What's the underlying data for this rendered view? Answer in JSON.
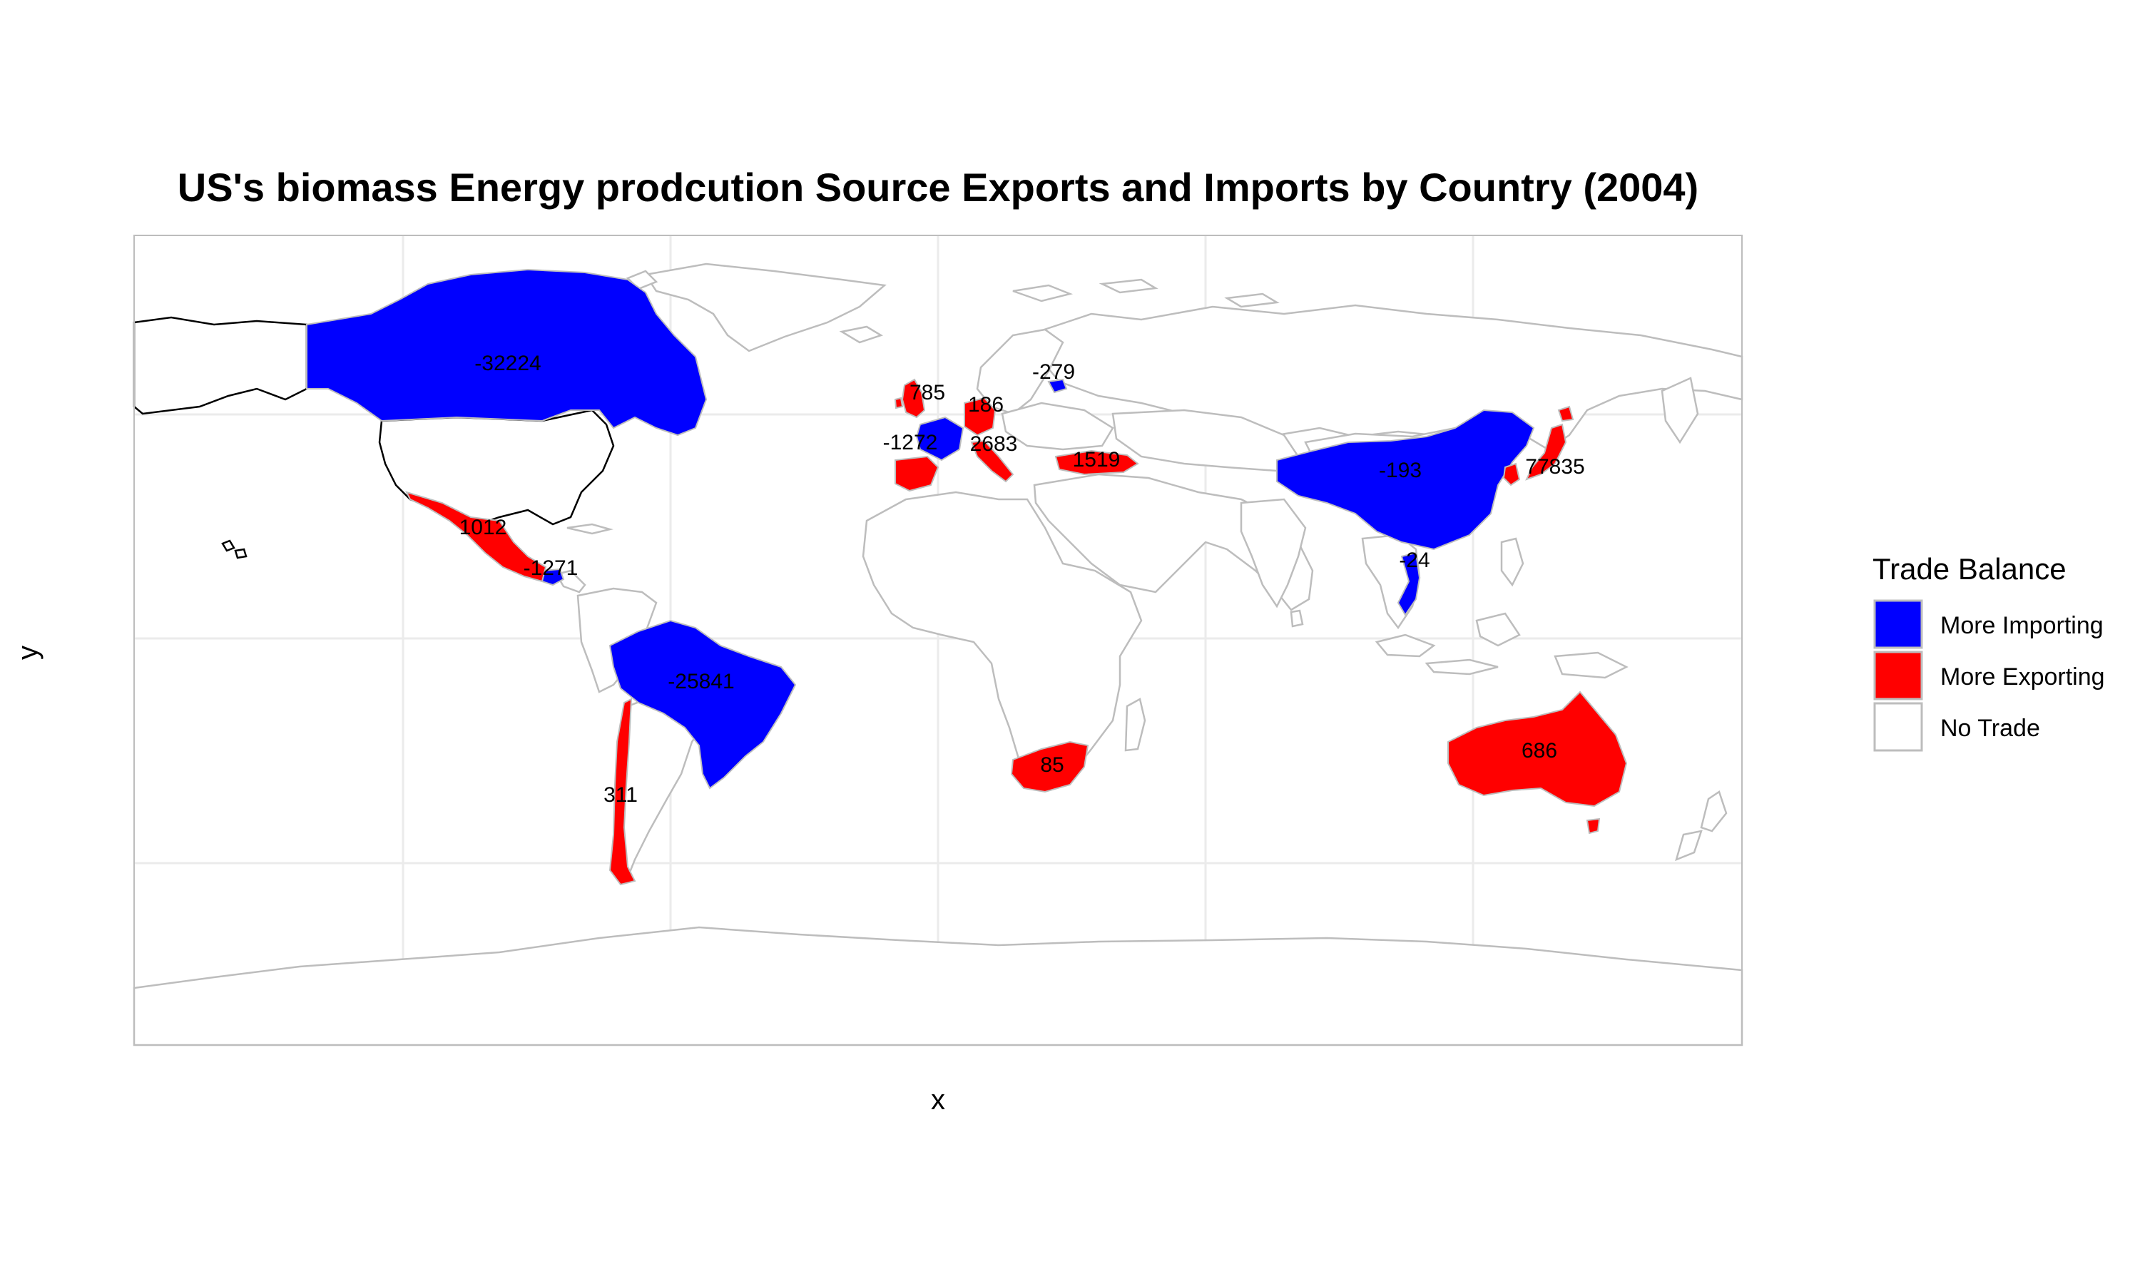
{
  "title": "US's biomass Energy prodcution Source Exports and Imports by Country (2004)",
  "x_label": "x",
  "y_label": "y",
  "legend": {
    "title": "Trade Balance",
    "items": [
      {
        "label": "More Importing",
        "color": "#0000ff"
      },
      {
        "label": "More Exporting",
        "color": "#ff0000"
      },
      {
        "label": "No Trade",
        "color": "#ffffff"
      }
    ]
  },
  "chart_data": {
    "type": "choropleth",
    "title": "US's biomass Energy prodcution Source Exports and Imports by Country (2004)",
    "xlabel": "x",
    "ylabel": "y",
    "legend_placement": "right",
    "grid": true,
    "regions": [
      {
        "country": "Canada",
        "value": -32224,
        "label": "-32224",
        "category": "More Importing"
      },
      {
        "country": "Mexico",
        "value": 1012,
        "label": "1012",
        "category": "More Exporting"
      },
      {
        "country": "Guatemala",
        "value": -1271,
        "label": "-1271",
        "category": "More Importing"
      },
      {
        "country": "Brazil",
        "value": -25841,
        "label": "-25841",
        "category": "More Importing"
      },
      {
        "country": "Chile",
        "value": 311,
        "label": "311",
        "category": "More Exporting"
      },
      {
        "country": "United Kingdom",
        "value": 785,
        "label": "785",
        "category": "More Exporting"
      },
      {
        "country": "Germany",
        "value": 186,
        "label": "186",
        "category": "More Exporting"
      },
      {
        "country": "Latvia",
        "value": -279,
        "label": "-279",
        "category": "More Importing"
      },
      {
        "country": "France",
        "value": -1272,
        "label": "-1272",
        "category": "More Importing"
      },
      {
        "country": "Spain",
        "value": null,
        "label": "",
        "category": "More Exporting"
      },
      {
        "country": "Italy",
        "value": 2683,
        "label": "2683",
        "category": "More Exporting"
      },
      {
        "country": "Turkey",
        "value": 1519,
        "label": "1519",
        "category": "More Exporting"
      },
      {
        "country": "China",
        "value": -193,
        "label": "-193",
        "category": "More Importing"
      },
      {
        "country": "Vietnam",
        "value": -24,
        "label": "-24",
        "category": "More Importing"
      },
      {
        "country": "South Korea",
        "value": 77835,
        "label": "77835",
        "category": "More Exporting"
      },
      {
        "country": "Japan",
        "value": null,
        "label": "",
        "category": "More Exporting"
      },
      {
        "country": "South Africa",
        "value": 85,
        "label": "85",
        "category": "More Exporting"
      },
      {
        "country": "Australia",
        "value": 686,
        "label": "686",
        "category": "More Exporting"
      }
    ]
  }
}
